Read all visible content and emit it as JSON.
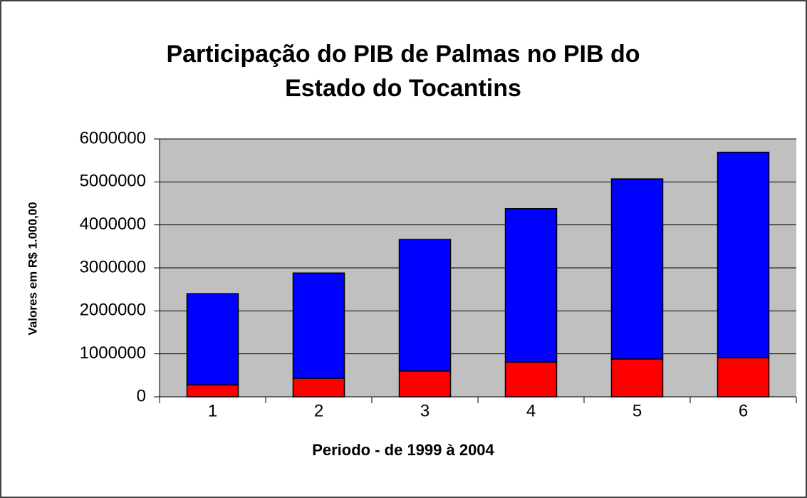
{
  "chart_data": {
    "type": "stacked_bar",
    "title": "Participação do PIB de Palmas no PIB do Estado do Tocantins",
    "x_label": "Periodo - de 1999 à 2004",
    "y_label": "Valores em R$ 1.000,00",
    "categories": [
      "1",
      "2",
      "3",
      "4",
      "5",
      "6"
    ],
    "series": [
      {
        "color": "#ff0000",
        "values": [
          280000,
          430000,
          600000,
          810000,
          880000,
          910000
        ]
      },
      {
        "color": "#0000ff",
        "values": [
          2120000,
          2450000,
          3060000,
          3570000,
          4190000,
          4780000
        ]
      }
    ],
    "ylim": [
      0,
      6000000
    ],
    "yticks": [
      0,
      1000000,
      2000000,
      3000000,
      4000000,
      5000000,
      6000000
    ],
    "grid": true
  }
}
